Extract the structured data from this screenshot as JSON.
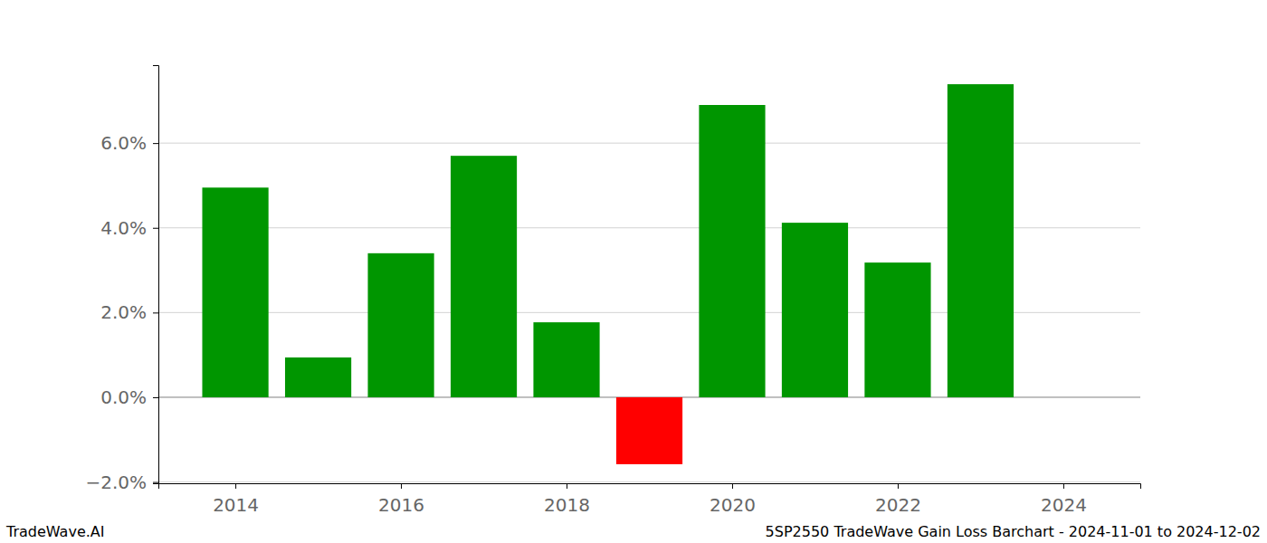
{
  "chart_data": {
    "type": "bar",
    "title": "5SP2550 TradeWave Gain Loss Barchart - 2024-11-01 to 2024-12-02",
    "annotations": [
      "TradeWave.AI"
    ],
    "x": [
      2014,
      2015,
      2016,
      2017,
      2018,
      2019,
      2020,
      2021,
      2022,
      2023
    ],
    "values": [
      4.95,
      0.94,
      3.4,
      5.7,
      1.77,
      -1.58,
      6.9,
      4.12,
      3.18,
      7.39
    ],
    "colors": [
      "#009600",
      "#009600",
      "#009600",
      "#009600",
      "#009600",
      "#ff0000",
      "#009600",
      "#009600",
      "#009600",
      "#009600"
    ],
    "xlim": [
      2013.07,
      2024.93
    ],
    "xticks": [
      2014,
      2016,
      2018,
      2020,
      2022,
      2024
    ],
    "ylim": [
      -2.03,
      7.84
    ],
    "yticks": [
      {
        "value": -2,
        "label": "−2.0%"
      },
      {
        "value": 0,
        "label": "0.0%"
      },
      {
        "value": 2,
        "label": "2.0%"
      },
      {
        "value": 4,
        "label": "4.0%"
      },
      {
        "value": 6,
        "label": "6.0%"
      }
    ],
    "grid": true
  }
}
